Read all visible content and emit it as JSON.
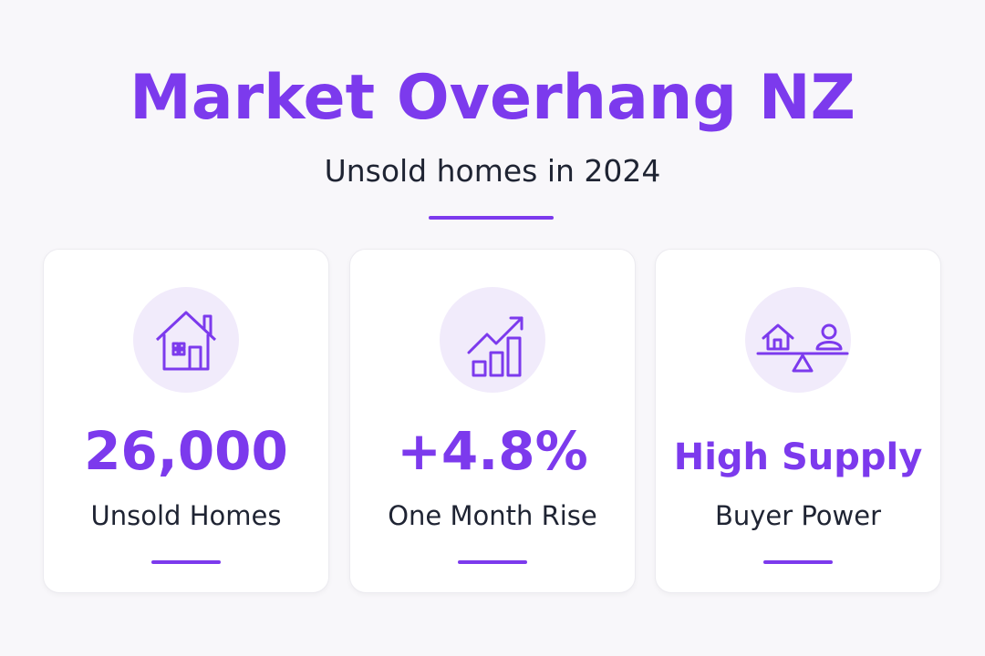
{
  "header": {
    "title": "Market Overhang NZ",
    "subtitle": "Unsold homes in 2024"
  },
  "cards": [
    {
      "value": "26,000",
      "label": "Unsold Homes"
    },
    {
      "value": "+4.8%",
      "label": "One Month Rise"
    },
    {
      "value": "High Supply",
      "label": "Buyer Power"
    }
  ]
}
